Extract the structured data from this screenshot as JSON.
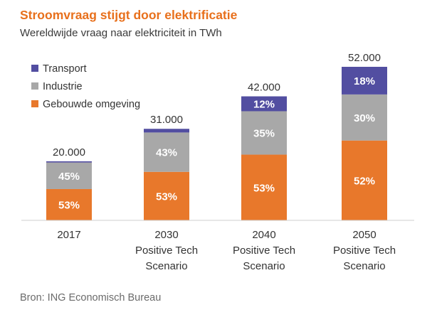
{
  "chart_data": {
    "type": "bar",
    "stacked": true,
    "title": "Stroomvraag stijgt door elektrificatie",
    "subtitle": "Wereldwijde vraag naar elektriciteit in TWh",
    "source": "Bron: ING Economisch Bureau",
    "categories": [
      [
        "2017"
      ],
      [
        "2030",
        "Positive Tech",
        "Scenario"
      ],
      [
        "2040",
        "Positive Tech",
        "Scenario"
      ],
      [
        "2050",
        "Positive Tech",
        "Scenario"
      ]
    ],
    "totals": [
      20000,
      31000,
      42000,
      52000
    ],
    "total_labels": [
      "20.000",
      "31.000",
      "42.000",
      "52.000"
    ],
    "ylim": [
      0,
      52000
    ],
    "legend_position": "top-left",
    "series": [
      {
        "name": "Gebouwde omgeving",
        "color": "#e8782b",
        "shares": [
          53,
          53,
          53,
          52
        ],
        "labels": [
          "53%",
          "53%",
          "53%",
          "52%"
        ]
      },
      {
        "name": "Industrie",
        "color": "#a8a8a8",
        "shares": [
          45,
          43,
          35,
          30
        ],
        "labels": [
          "45%",
          "43%",
          "35%",
          "30%"
        ]
      },
      {
        "name": "Transport",
        "color": "#524ea1",
        "shares": [
          2,
          4,
          12,
          18
        ],
        "labels": [
          "",
          "",
          "12%",
          "18%"
        ]
      }
    ]
  }
}
